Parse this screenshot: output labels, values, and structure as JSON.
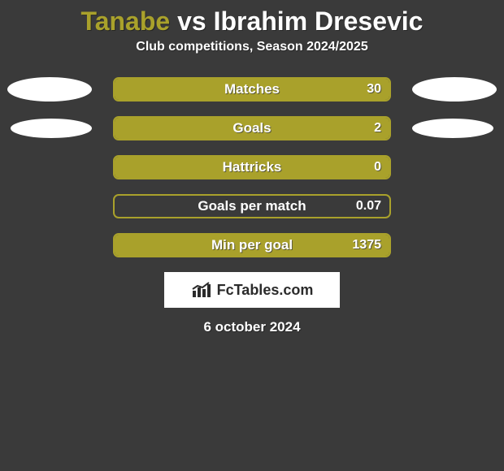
{
  "title": {
    "player1": "Tanabe",
    "vs": " vs ",
    "player2": "Ibrahim Dresevic",
    "player1_color": "#a9a12b",
    "player2_color": "#ffffff",
    "title_fontsize": 32
  },
  "subtitle": "Club competitions, Season 2024/2025",
  "accent_color": "#a9a12b",
  "track_border_color": "#a9a12b",
  "bar_fill_color": "#a9a12b",
  "label_text_color": "#ffffff",
  "background_color": "#3a3a3a",
  "oval_color": "#ffffff",
  "stats": [
    {
      "label": "Matches",
      "value_text": "30",
      "fill_pct": 100,
      "show_ovals": true,
      "oval_size": "lg"
    },
    {
      "label": "Goals",
      "value_text": "2",
      "fill_pct": 100,
      "show_ovals": true,
      "oval_size": "sm"
    },
    {
      "label": "Hattricks",
      "value_text": "0",
      "fill_pct": 100,
      "show_ovals": false,
      "oval_size": "lg"
    },
    {
      "label": "Goals per match",
      "value_text": "0.07",
      "fill_pct": 0,
      "show_ovals": false,
      "oval_size": "lg"
    },
    {
      "label": "Min per goal",
      "value_text": "1375",
      "fill_pct": 100,
      "show_ovals": false,
      "oval_size": "lg"
    }
  ],
  "badge": {
    "text": "FcTables.com"
  },
  "date": "6 october 2024"
}
